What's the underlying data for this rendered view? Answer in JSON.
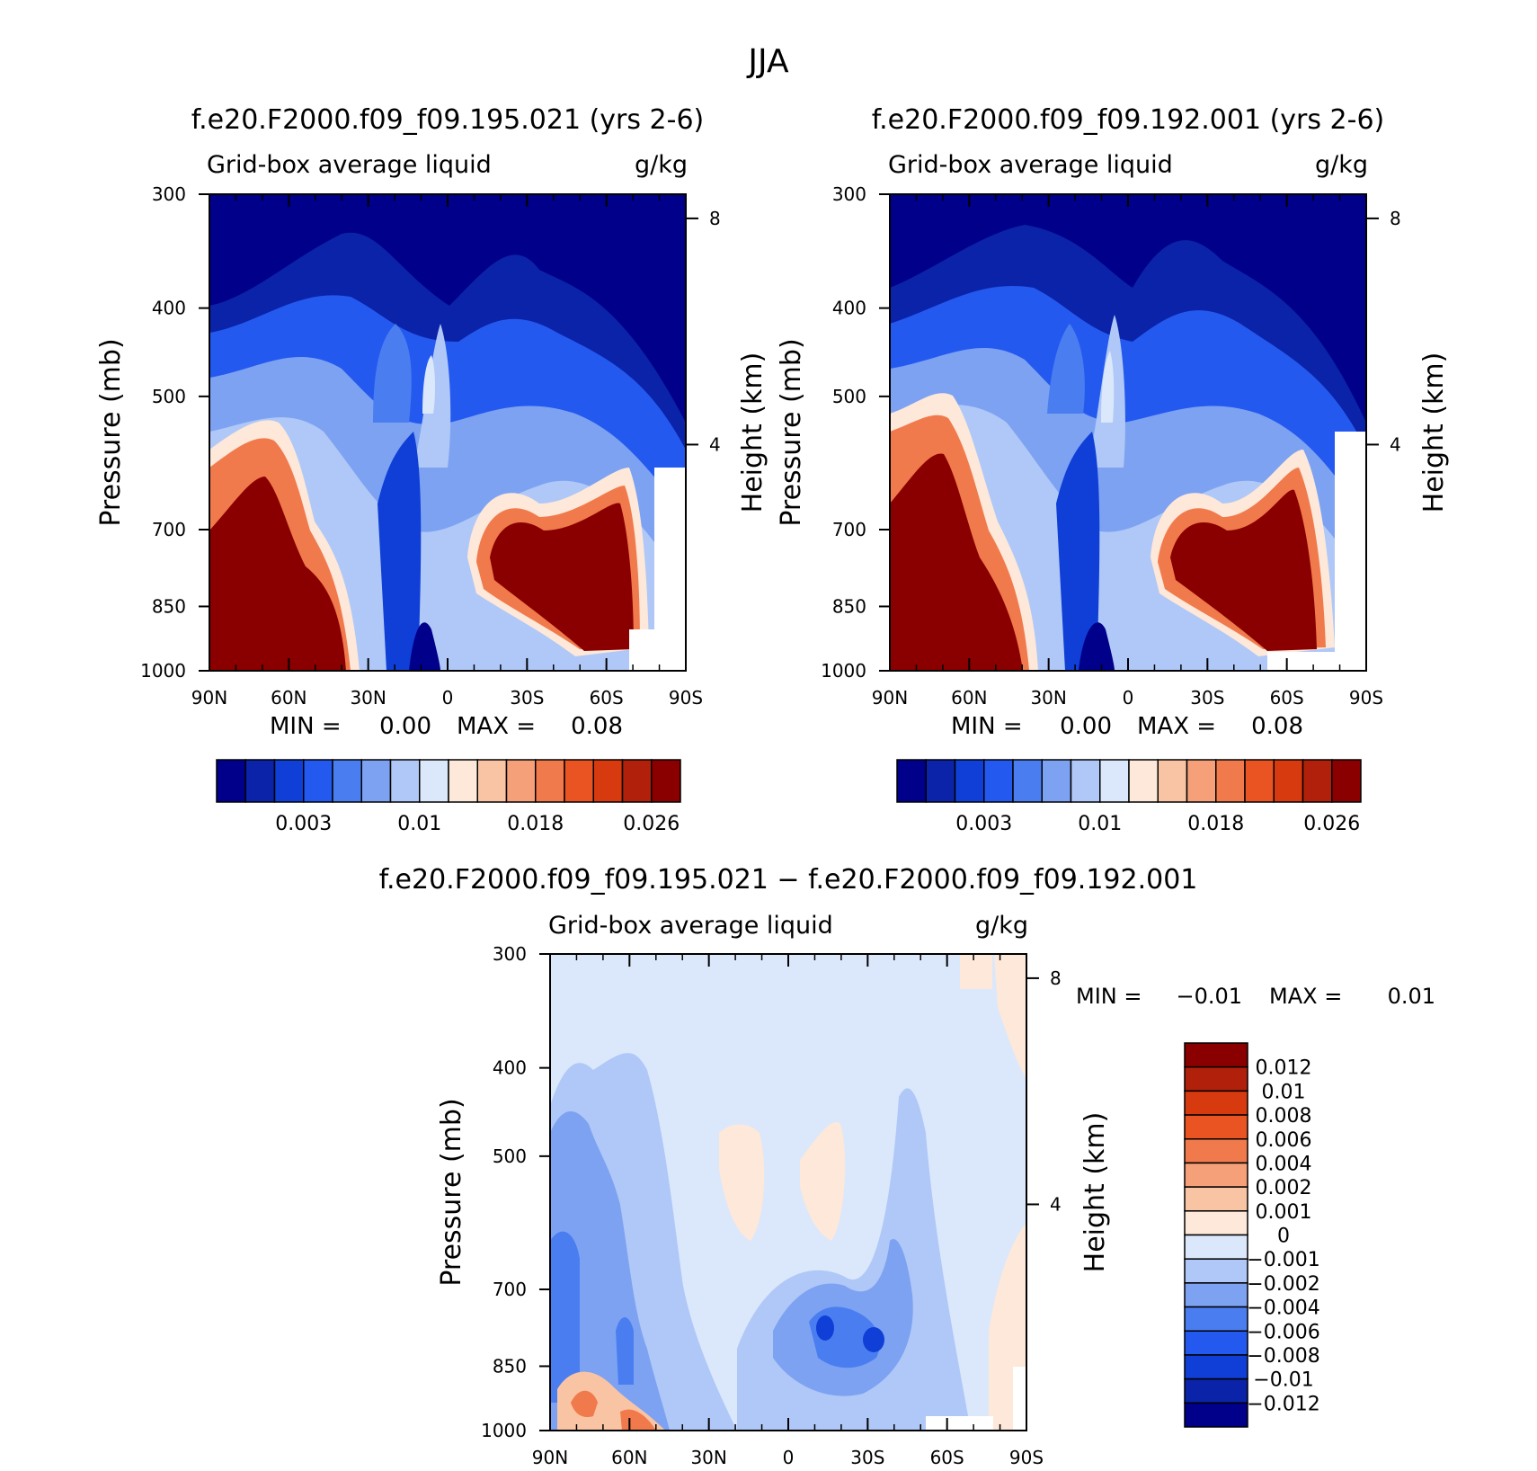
{
  "page": {
    "title": "JJA"
  },
  "chart_data": [
    {
      "type": "contour",
      "title": "f.e20.F2000.f09_f09.195.021 (yrs 2-6)",
      "subtitle_left": "Grid-box average liquid",
      "subtitle_right": "g/kg",
      "xlabel": "",
      "ylabel": "Pressure (mb)",
      "ylabel_right": "Height (km)",
      "x_ticks": [
        "90N",
        "60N",
        "30N",
        "0",
        "30S",
        "60S",
        "90S"
      ],
      "y_ticks": [
        "300",
        "400",
        "500",
        "700",
        "850",
        "1000"
      ],
      "y_ticks_right": [
        "8",
        "4"
      ],
      "min_label": "MIN =",
      "min_value": "0.00",
      "max_label": "MAX =",
      "max_value": "0.08",
      "colorbar_labels": [
        "0.003",
        "0.01",
        "0.018",
        "0.026"
      ],
      "colorbar_colors": [
        "#00008a",
        "#0a23a8",
        "#0f3fd6",
        "#2459f0",
        "#4a7ef0",
        "#7da2f2",
        "#b0c8f7",
        "#dbe8fb",
        "#fde8d9",
        "#f9c4a4",
        "#f5a079",
        "#f07a4c",
        "#ea5422",
        "#d83a0f",
        "#b1200a",
        "#8a0000"
      ]
    },
    {
      "type": "contour",
      "title": "f.e20.F2000.f09_f09.192.001 (yrs 2-6)",
      "subtitle_left": "Grid-box average liquid",
      "subtitle_right": "g/kg",
      "ylabel": "Pressure (mb)",
      "ylabel_right": "Height (km)",
      "x_ticks": [
        "90N",
        "60N",
        "30N",
        "0",
        "30S",
        "60S",
        "90S"
      ],
      "y_ticks": [
        "300",
        "400",
        "500",
        "700",
        "850",
        "1000"
      ],
      "y_ticks_right": [
        "8",
        "4"
      ],
      "min_label": "MIN =",
      "min_value": "0.00",
      "max_label": "MAX =",
      "max_value": "0.08",
      "colorbar_labels": [
        "0.003",
        "0.01",
        "0.018",
        "0.026"
      ]
    },
    {
      "type": "contour",
      "title": "f.e20.F2000.f09_f09.195.021 − f.e20.F2000.f09_f09.192.001",
      "subtitle_left": "Grid-box average liquid",
      "subtitle_right": "g/kg",
      "ylabel": "Pressure (mb)",
      "ylabel_right": "Height (km)",
      "x_ticks": [
        "90N",
        "60N",
        "30N",
        "0",
        "30S",
        "60S",
        "90S"
      ],
      "y_ticks": [
        "300",
        "400",
        "500",
        "700",
        "850",
        "1000"
      ],
      "y_ticks_right": [
        "8",
        "4"
      ],
      "min_label": "MIN =",
      "min_value": "−0.01",
      "max_label": "MAX =",
      "max_value": "0.01",
      "colorbar_labels": [
        "0.012",
        "0.01",
        "0.008",
        "0.006",
        "0.004",
        "0.002",
        "0.001",
        "0",
        "−0.001",
        "−0.002",
        "−0.004",
        "−0.006",
        "−0.008",
        "−0.01",
        "−0.012"
      ],
      "colorbar_colors": [
        "#8a0000",
        "#b1200a",
        "#d83a0f",
        "#ea5422",
        "#f07a4c",
        "#f5a079",
        "#f9c4a4",
        "#fde8d9",
        "#dbe8fb",
        "#b0c8f7",
        "#7da2f2",
        "#4a7ef0",
        "#2459f0",
        "#0f3fd6",
        "#0a23a8",
        "#00008a"
      ]
    }
  ]
}
